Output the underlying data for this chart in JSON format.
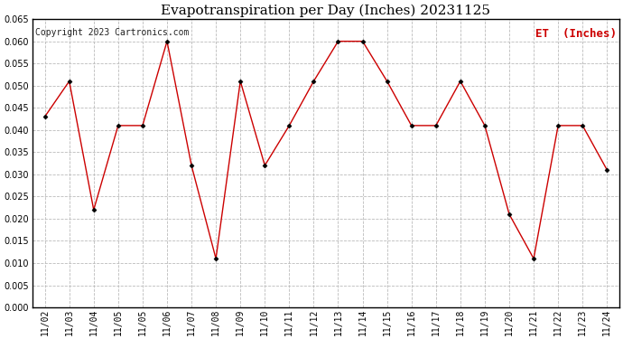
{
  "title": "Evapotranspiration per Day (Inches) 20231125",
  "copyright": "Copyright 2023 Cartronics.com",
  "legend_label": "ET  (Inches)",
  "x_labels": [
    "11/02",
    "11/03",
    "11/04",
    "11/05",
    "11/05",
    "11/06",
    "11/07",
    "11/08",
    "11/09",
    "11/10",
    "11/11",
    "11/12",
    "11/13",
    "11/14",
    "11/15",
    "11/16",
    "11/17",
    "11/18",
    "11/19",
    "11/20",
    "11/21",
    "11/22",
    "11/23",
    "11/24"
  ],
  "y_values": [
    0.043,
    0.051,
    0.022,
    0.041,
    0.041,
    0.06,
    0.032,
    0.011,
    0.051,
    0.032,
    0.041,
    0.051,
    0.06,
    0.06,
    0.051,
    0.041,
    0.041,
    0.051,
    0.041,
    0.021,
    0.011,
    0.041,
    0.041,
    0.031
  ],
  "line_color": "#cc0000",
  "marker_color": "#000000",
  "plot_bg_color": "#ffffff",
  "fig_bg_color": "#ffffff",
  "grid_color": "#bbbbbb",
  "ylim_min": 0.0,
  "ylim_max": 0.065,
  "title_fontsize": 11,
  "legend_fontsize": 9,
  "copyright_fontsize": 7,
  "tick_fontsize": 7,
  "border_color": "#000000"
}
